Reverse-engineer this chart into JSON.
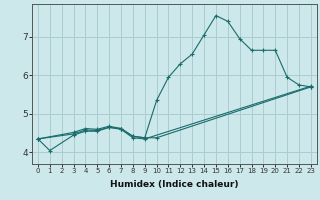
{
  "xlabel": "Humidex (Indice chaleur)",
  "background_color": "#cce8eb",
  "grid_color": "#aacdd2",
  "line_color": "#1a6b6b",
  "xlim": [
    -0.5,
    23.5
  ],
  "ylim": [
    3.7,
    7.85
  ],
  "yticks": [
    4,
    5,
    6,
    7
  ],
  "xticks": [
    0,
    1,
    2,
    3,
    4,
    5,
    6,
    7,
    8,
    9,
    10,
    11,
    12,
    13,
    14,
    15,
    16,
    17,
    18,
    19,
    20,
    21,
    22,
    23
  ],
  "series": [
    {
      "x": [
        0,
        1,
        3,
        4,
        5,
        6,
        7,
        8,
        9,
        10,
        11,
        12,
        13,
        14,
        15,
        16,
        17,
        18,
        19,
        20,
        21,
        22,
        23
      ],
      "y": [
        4.35,
        4.05,
        4.45,
        4.55,
        4.55,
        4.65,
        4.62,
        4.42,
        4.38,
        5.35,
        5.95,
        6.3,
        6.55,
        7.05,
        7.55,
        7.4,
        6.95,
        6.65,
        6.65,
        6.65,
        5.95,
        5.75,
        5.7
      ]
    },
    {
      "x": [
        0,
        3,
        4,
        5,
        6,
        7,
        8,
        9,
        10,
        23
      ],
      "y": [
        4.35,
        4.52,
        4.62,
        4.6,
        4.68,
        4.62,
        4.42,
        4.38,
        4.38,
        5.7
      ]
    },
    {
      "x": [
        0,
        3,
        4,
        5,
        6,
        7,
        8,
        9,
        23
      ],
      "y": [
        4.35,
        4.48,
        4.58,
        4.57,
        4.65,
        4.6,
        4.38,
        4.35,
        5.72
      ]
    }
  ]
}
